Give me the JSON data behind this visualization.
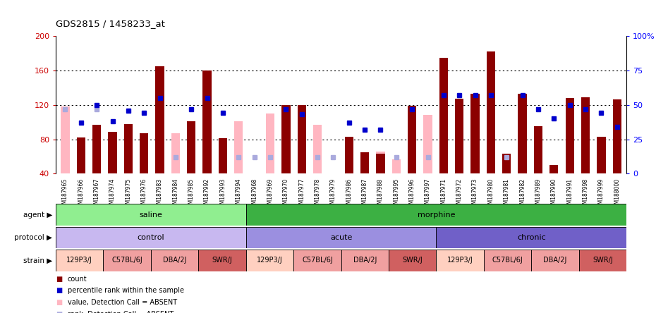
{
  "title": "GDS2815 / 1458233_at",
  "ylim": [
    40,
    200
  ],
  "yticks": [
    40,
    80,
    120,
    160,
    200
  ],
  "right_ylim": [
    0,
    100
  ],
  "right_yticks": [
    0,
    25,
    50,
    75,
    100
  ],
  "right_yticklabels": [
    "0",
    "25",
    "50",
    "75",
    "100%"
  ],
  "samples": [
    "GSM187965",
    "GSM187966",
    "GSM187967",
    "GSM187974",
    "GSM187975",
    "GSM187976",
    "GSM187983",
    "GSM187984",
    "GSM187985",
    "GSM187992",
    "GSM187993",
    "GSM187994",
    "GSM187968",
    "GSM187969",
    "GSM187970",
    "GSM187977",
    "GSM187978",
    "GSM187979",
    "GSM187986",
    "GSM187987",
    "GSM187988",
    "GSM187995",
    "GSM187996",
    "GSM187997",
    "GSM187971",
    "GSM187972",
    "GSM187973",
    "GSM187980",
    "GSM187981",
    "GSM187982",
    "GSM187989",
    "GSM187990",
    "GSM187991",
    "GSM187998",
    "GSM187999",
    "GSM188000"
  ],
  "count_values": [
    null,
    82,
    97,
    89,
    98,
    87,
    165,
    null,
    101,
    160,
    81,
    null,
    null,
    null,
    120,
    120,
    null,
    null,
    83,
    65,
    63,
    null,
    119,
    null,
    175,
    127,
    133,
    182,
    63,
    133,
    95,
    50,
    128,
    129,
    83,
    126
  ],
  "absent_value": [
    118,
    null,
    97,
    null,
    null,
    null,
    null,
    87,
    null,
    null,
    null,
    101,
    null,
    110,
    null,
    null,
    97,
    null,
    null,
    null,
    66,
    57,
    null,
    108,
    null,
    null,
    null,
    null,
    null,
    null,
    null,
    null,
    88,
    null,
    null,
    null
  ],
  "percentile_rank_pct": [
    null,
    37,
    50,
    38,
    46,
    44,
    55,
    null,
    47,
    55,
    44,
    null,
    null,
    null,
    47,
    43,
    null,
    null,
    37,
    32,
    32,
    null,
    47,
    null,
    57,
    57,
    57,
    57,
    null,
    57,
    47,
    40,
    50,
    47,
    44,
    34
  ],
  "absent_rank_pct": [
    47,
    null,
    47,
    null,
    null,
    null,
    null,
    12,
    null,
    null,
    null,
    12,
    12,
    12,
    null,
    null,
    12,
    12,
    null,
    null,
    null,
    12,
    null,
    12,
    null,
    null,
    null,
    null,
    12,
    null,
    null,
    null,
    null,
    null,
    null,
    null
  ],
  "agent_groups": [
    {
      "label": "saline",
      "start": 0,
      "end": 12,
      "color": "#90ee90"
    },
    {
      "label": "morphine",
      "start": 12,
      "end": 36,
      "color": "#3cb043"
    }
  ],
  "protocol_groups": [
    {
      "label": "control",
      "start": 0,
      "end": 12,
      "color": "#c8b8f0"
    },
    {
      "label": "acute",
      "start": 12,
      "end": 24,
      "color": "#9b8fe0"
    },
    {
      "label": "chronic",
      "start": 24,
      "end": 36,
      "color": "#7060c8"
    }
  ],
  "strain_groups": [
    {
      "label": "129P3/J",
      "start": 0,
      "end": 3,
      "color": "#ffd0c0"
    },
    {
      "label": "C57BL/6J",
      "start": 3,
      "end": 6,
      "color": "#f0a0a0"
    },
    {
      "label": "DBA/2J",
      "start": 6,
      "end": 9,
      "color": "#f0a0a0"
    },
    {
      "label": "SWR/J",
      "start": 9,
      "end": 12,
      "color": "#d06060"
    },
    {
      "label": "129P3/J",
      "start": 12,
      "end": 15,
      "color": "#ffd0c0"
    },
    {
      "label": "C57BL/6J",
      "start": 15,
      "end": 18,
      "color": "#f0a0a0"
    },
    {
      "label": "DBA/2J",
      "start": 18,
      "end": 21,
      "color": "#f0a0a0"
    },
    {
      "label": "SWR/J",
      "start": 21,
      "end": 24,
      "color": "#d06060"
    },
    {
      "label": "129P3/J",
      "start": 24,
      "end": 27,
      "color": "#ffd0c0"
    },
    {
      "label": "C57BL/6J",
      "start": 27,
      "end": 30,
      "color": "#f0a0a0"
    },
    {
      "label": "DBA/2J",
      "start": 30,
      "end": 33,
      "color": "#f0a0a0"
    },
    {
      "label": "SWR/J",
      "start": 33,
      "end": 36,
      "color": "#d06060"
    }
  ],
  "bar_color": "#8b0000",
  "absent_bar_color": "#ffb6c1",
  "percentile_color": "#0000cc",
  "absent_rank_color": "#aaaadd",
  "xtick_bg": "#d0d0d0",
  "tick_color_left": "#cc0000",
  "tick_color_right": "#0000ff"
}
